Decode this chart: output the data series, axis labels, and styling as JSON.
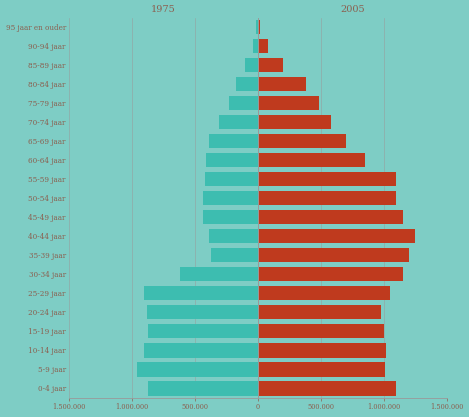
{
  "age_labels": [
    "0-4 jaar",
    "5-9 jaar",
    "10-14 jaar",
    "15-19 jaar",
    "20-24 jaar",
    "25-29 jaar",
    "30-34 jaar",
    "35-39 jaar",
    "40-44 jaar",
    "45-49 jaar",
    "50-54 jaar",
    "55-59 jaar",
    "60-64 jaar",
    "65-69 jaar",
    "70-74 jaar",
    "75-79 jaar",
    "80-84 jaar",
    "85-89 jaar",
    "90-94 jaar",
    "95 jaar en ouder"
  ],
  "values_1975": [
    870000,
    960000,
    900000,
    870000,
    880000,
    900000,
    620000,
    370000,
    390000,
    430000,
    430000,
    420000,
    410000,
    390000,
    310000,
    230000,
    170000,
    100000,
    40000,
    10000
  ],
  "values_2005": [
    1100000,
    1010000,
    1020000,
    1000000,
    980000,
    1050000,
    1150000,
    1200000,
    1250000,
    1150000,
    1100000,
    1100000,
    850000,
    700000,
    580000,
    490000,
    380000,
    200000,
    80000,
    15000
  ],
  "color_1975": "#3dbdb0",
  "color_2005": "#bf3a1e",
  "background_color": "#7ecdc5",
  "text_color": "#8b6050",
  "grid_color": "#999999",
  "label_1975": "1975",
  "label_2005": "2005",
  "xlim": 1500000,
  "bar_height": 0.75,
  "xtick_vals": [
    -1500000,
    -1000000,
    -500000,
    0,
    500000,
    1000000,
    1500000
  ],
  "xtick_labels": [
    "1.500.000",
    "1.000.000",
    "500.000",
    "0",
    "500.000",
    "1.000.000",
    "1.500.000"
  ],
  "figsize": [
    4.69,
    4.17
  ],
  "dpi": 100
}
